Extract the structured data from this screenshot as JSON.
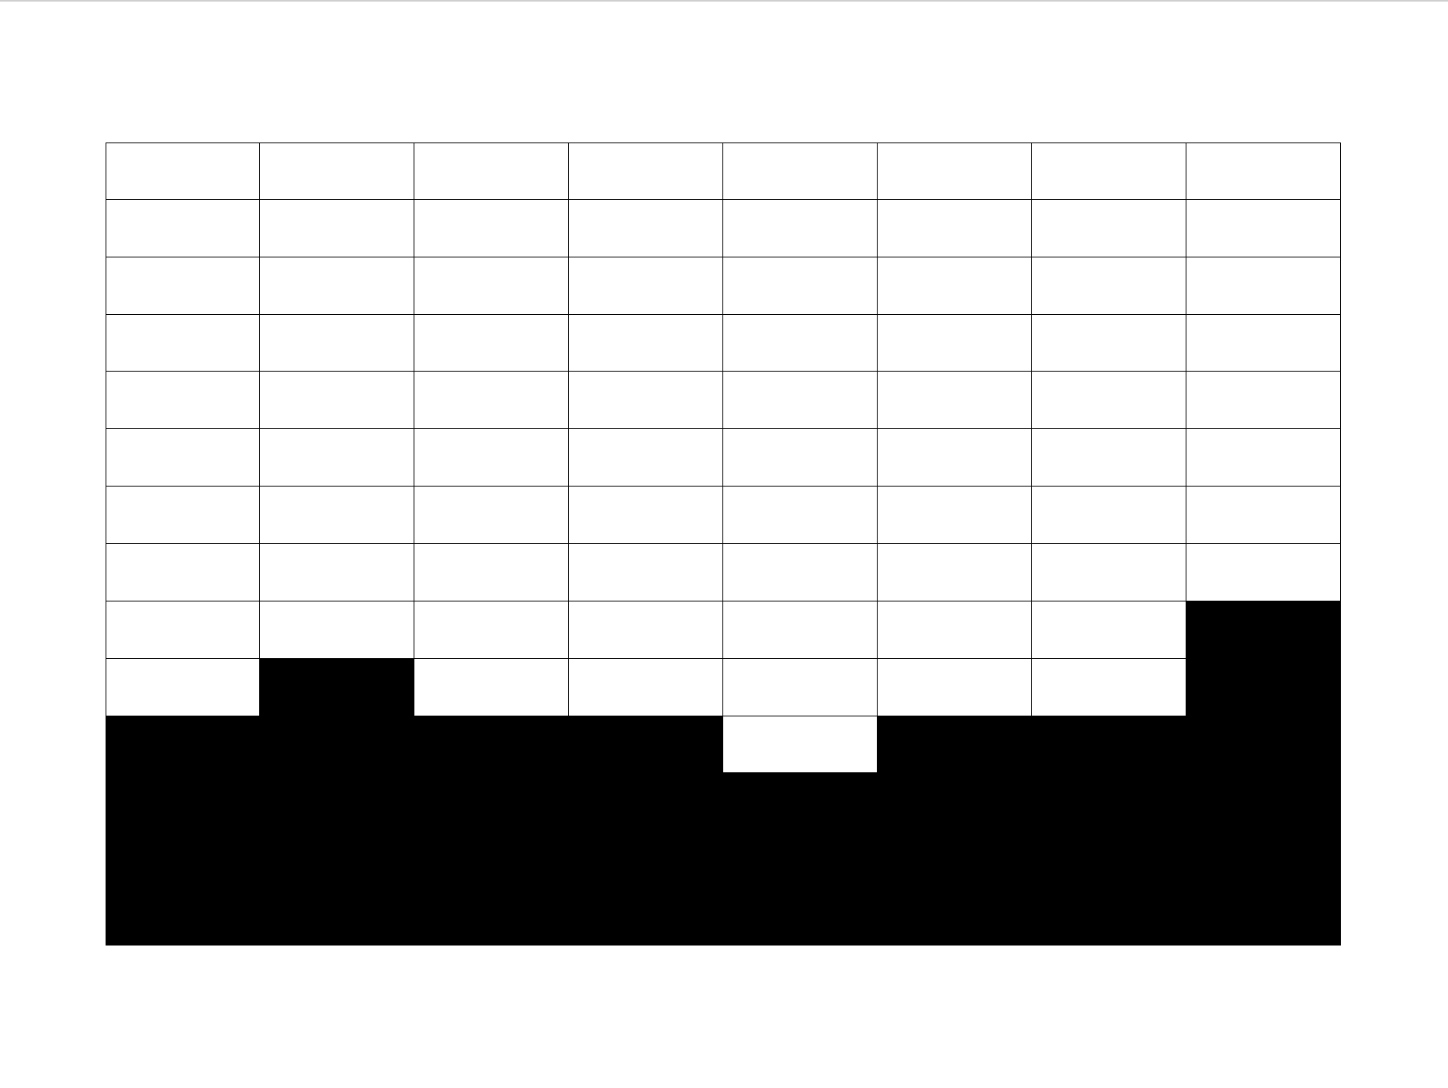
{
  "grid": {
    "columns": 8,
    "rows": 14,
    "fill_color": "#000000",
    "empty_color": "#ffffff",
    "line_color": "#000000",
    "filled_from_bottom": [
      4,
      5,
      4,
      4,
      3,
      4,
      4,
      6
    ]
  }
}
